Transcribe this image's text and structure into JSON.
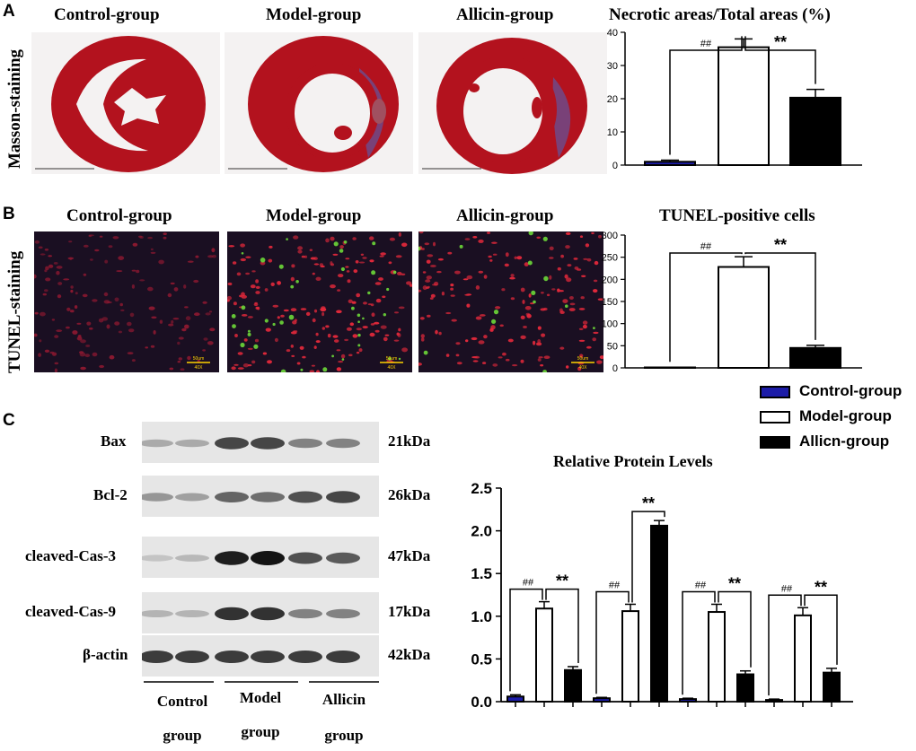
{
  "panels": {
    "A": {
      "letter": "A",
      "row_label": "Masson-staining",
      "col_titles": [
        "Control-group",
        "Model-group",
        "Allicin-group"
      ]
    },
    "B": {
      "letter": "B",
      "row_label": "TUNEL-staining",
      "col_titles": [
        "Control-group",
        "Model-group",
        "Allicin-group"
      ],
      "scale_label": "50um",
      "mag_label": "40X"
    },
    "C": {
      "letter": "C",
      "blot_rows": [
        {
          "label": "Bax",
          "kda": "21kDa"
        },
        {
          "label": "Bcl-2",
          "kda": "26kDa"
        },
        {
          "label": "cleaved-Cas-3",
          "kda": "47kDa"
        },
        {
          "label": "cleaved-Cas-9",
          "kda": "17kDa"
        },
        {
          "label": "β-actin",
          "kda": "42kDa"
        }
      ],
      "groups": [
        {
          "line1": "Control",
          "line2": "group"
        },
        {
          "line1": "Model",
          "line2": "group"
        },
        {
          "line1": "Allicin",
          "line2": "group"
        }
      ],
      "legend": [
        "Control-group",
        "Model-group",
        "Allicn-group"
      ]
    }
  },
  "colors": {
    "control": "#1c1ca8",
    "model": "#ffffff",
    "allicin": "#000000",
    "masson_red": "#b3121e",
    "masson_blue": "#6a4e8e",
    "tunel_bg": "#1a0f22"
  },
  "chart_data": [
    {
      "type": "bar",
      "title": "Necrotic areas/Total areas (%)",
      "categories": [
        "Control-group",
        "Model-group",
        "Allicin-group"
      ],
      "values": [
        1,
        35.5,
        20.3
      ],
      "errors": [
        0.5,
        2.5,
        2.5
      ],
      "ylim": [
        0,
        40
      ],
      "yticks": [
        0,
        10,
        20,
        30,
        40
      ],
      "annotations": [
        "##",
        "**"
      ]
    },
    {
      "type": "bar",
      "title": "TUNEL-positive cells",
      "categories": [
        "Control-group",
        "Model-group",
        "Allicin-group"
      ],
      "values": [
        1,
        228,
        45
      ],
      "errors": [
        0.5,
        23,
        6
      ],
      "ylim": [
        0,
        300
      ],
      "yticks": [
        0,
        50,
        100,
        150,
        200,
        250,
        300
      ],
      "annotations": [
        "##",
        "**"
      ]
    },
    {
      "type": "bar",
      "title": "Relative Protein Levels",
      "categories": [
        "Bax",
        "Bcl-2",
        "cleaved-Cas-3",
        "cleaved-Cas-9"
      ],
      "series": [
        {
          "name": "Control-group",
          "values": [
            0.06,
            0.04,
            0.03,
            0.02
          ],
          "errors": [
            0.02,
            0.01,
            0.01,
            0.01
          ]
        },
        {
          "name": "Model-group",
          "values": [
            1.09,
            1.06,
            1.05,
            1.01
          ],
          "errors": [
            0.08,
            0.08,
            0.09,
            0.09
          ]
        },
        {
          "name": "Allicn-group",
          "values": [
            0.37,
            2.06,
            0.32,
            0.34
          ],
          "errors": [
            0.04,
            0.06,
            0.04,
            0.05
          ]
        }
      ],
      "ylim": [
        0,
        2.5
      ],
      "yticks": [
        "0.0",
        "0.5",
        "1.0",
        "1.5",
        "2.0",
        "2.5"
      ],
      "annotations": [
        [
          "##",
          "**"
        ],
        [
          "##",
          "**"
        ],
        [
          "##",
          "**"
        ],
        [
          "##",
          "**"
        ]
      ]
    }
  ]
}
